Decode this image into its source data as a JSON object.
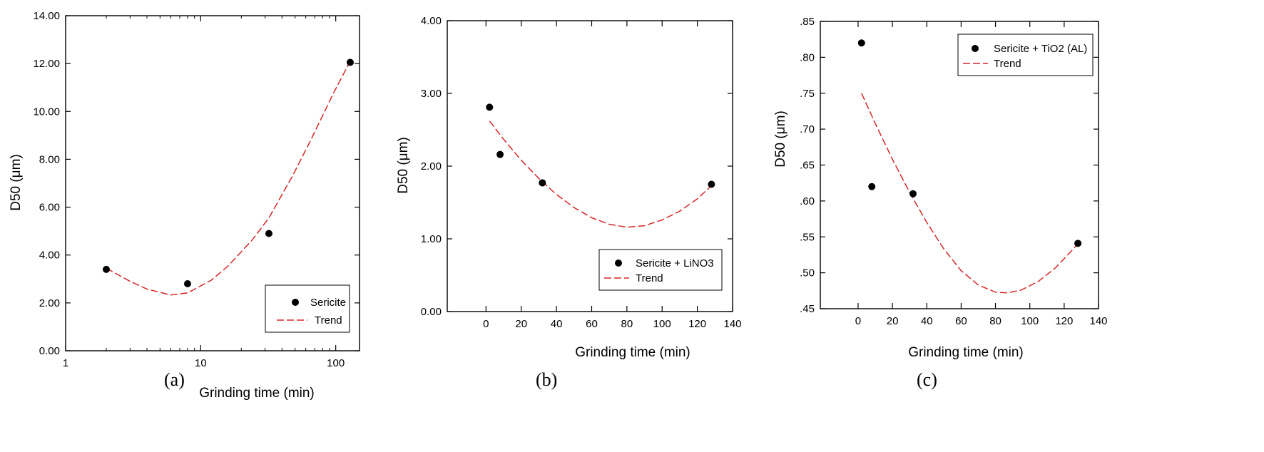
{
  "chart_data": [
    {
      "panel": "(a)",
      "type": "scatter",
      "xscale": "log",
      "xlim": [
        1,
        150
      ],
      "xticks": [
        1,
        10,
        100
      ],
      "xtick_labels": [
        "1",
        "10",
        "100"
      ],
      "ylim": [
        0,
        14
      ],
      "yticks": [
        0,
        2,
        4,
        6,
        8,
        10,
        12,
        14
      ],
      "ytick_labels": [
        "0.00",
        "2.00",
        "4.00",
        "6.00",
        "8.00",
        "10.00",
        "12.00",
        "14.00"
      ],
      "xlabel": "Grinding time (min)",
      "ylabel": "D50 (μm)",
      "series": [
        {
          "name": "Sericite",
          "kind": "points",
          "x": [
            2,
            8,
            32,
            128
          ],
          "y": [
            3.4,
            2.8,
            4.9,
            12.05
          ]
        },
        {
          "name": "Trend",
          "kind": "line",
          "color": "#d62728",
          "x": [
            2,
            3,
            4,
            6,
            8,
            12,
            16,
            24,
            32,
            48,
            64,
            96,
            128
          ],
          "y": [
            3.45,
            2.9,
            2.58,
            2.33,
            2.42,
            2.95,
            3.55,
            4.62,
            5.55,
            7.32,
            8.7,
            10.75,
            12.1
          ]
        }
      ],
      "legend": {
        "position": "bottom-right",
        "labels": [
          "Sericite",
          "Trend"
        ]
      }
    },
    {
      "panel": "(b)",
      "type": "scatter",
      "xscale": "linear",
      "xlim": [
        -22,
        140
      ],
      "xticks": [
        0,
        20,
        40,
        60,
        80,
        100,
        120,
        140
      ],
      "xtick_labels": [
        "0",
        "20",
        "40",
        "60",
        "80",
        "100",
        "120",
        "140"
      ],
      "ylim": [
        0,
        4
      ],
      "yticks": [
        0,
        1,
        2,
        3,
        4
      ],
      "ytick_labels": [
        "0.00",
        "1.00",
        "2.00",
        "3.00",
        "4.00"
      ],
      "xlabel": "Grinding time (min)",
      "ylabel": "D50 (μm)",
      "series": [
        {
          "name": "Sericite + LiNO3",
          "kind": "points",
          "x": [
            2,
            8,
            32,
            128
          ],
          "y": [
            2.81,
            2.16,
            1.77,
            1.75
          ]
        },
        {
          "name": "Trend",
          "kind": "line",
          "color": "#d62728",
          "x": [
            2,
            10,
            20,
            30,
            40,
            50,
            60,
            70,
            80,
            90,
            100,
            110,
            120,
            128
          ],
          "y": [
            2.62,
            2.37,
            2.08,
            1.83,
            1.61,
            1.43,
            1.29,
            1.2,
            1.16,
            1.18,
            1.26,
            1.38,
            1.55,
            1.73
          ]
        }
      ],
      "legend": {
        "position": "bottom-right",
        "labels": [
          "Sericite + LiNO3",
          "Trend"
        ]
      }
    },
    {
      "panel": "(c)",
      "type": "scatter",
      "xscale": "linear",
      "xlim": [
        -22,
        140
      ],
      "xticks": [
        0,
        20,
        40,
        60,
        80,
        100,
        120,
        140
      ],
      "xtick_labels": [
        "0",
        "20",
        "40",
        "60",
        "80",
        "100",
        "120",
        "140"
      ],
      "ylim": [
        0.45,
        0.85
      ],
      "yticks": [
        0.45,
        0.5,
        0.55,
        0.6,
        0.65,
        0.7,
        0.75,
        0.8,
        0.85
      ],
      "ytick_labels": [
        ".45",
        ".50",
        ".55",
        ".60",
        ".65",
        ".70",
        ".75",
        ".80",
        ".85"
      ],
      "xlabel": "Grinding time (min)",
      "ylabel": "D50 (μm)",
      "series": [
        {
          "name": "Sericite + TiO2 (AL)",
          "kind": "points",
          "x": [
            2,
            8,
            32,
            128
          ],
          "y": [
            0.82,
            0.62,
            0.61,
            0.541
          ]
        },
        {
          "name": "Trend",
          "kind": "line",
          "color": "#d62728",
          "x": [
            2,
            10,
            20,
            30,
            40,
            50,
            60,
            70,
            80,
            87,
            95,
            105,
            115,
            128
          ],
          "y": [
            0.75,
            0.708,
            0.658,
            0.612,
            0.57,
            0.533,
            0.503,
            0.483,
            0.473,
            0.472,
            0.476,
            0.488,
            0.507,
            0.54
          ]
        }
      ],
      "legend": {
        "position": "top-right",
        "labels": [
          "Sericite + TiO2 (AL)",
          "Trend"
        ]
      }
    }
  ],
  "panel_labels": [
    "(a)",
    "(b)",
    "(c)"
  ],
  "colors": {
    "trend": "#d62728",
    "points": "#000000",
    "axes": "#000000"
  }
}
